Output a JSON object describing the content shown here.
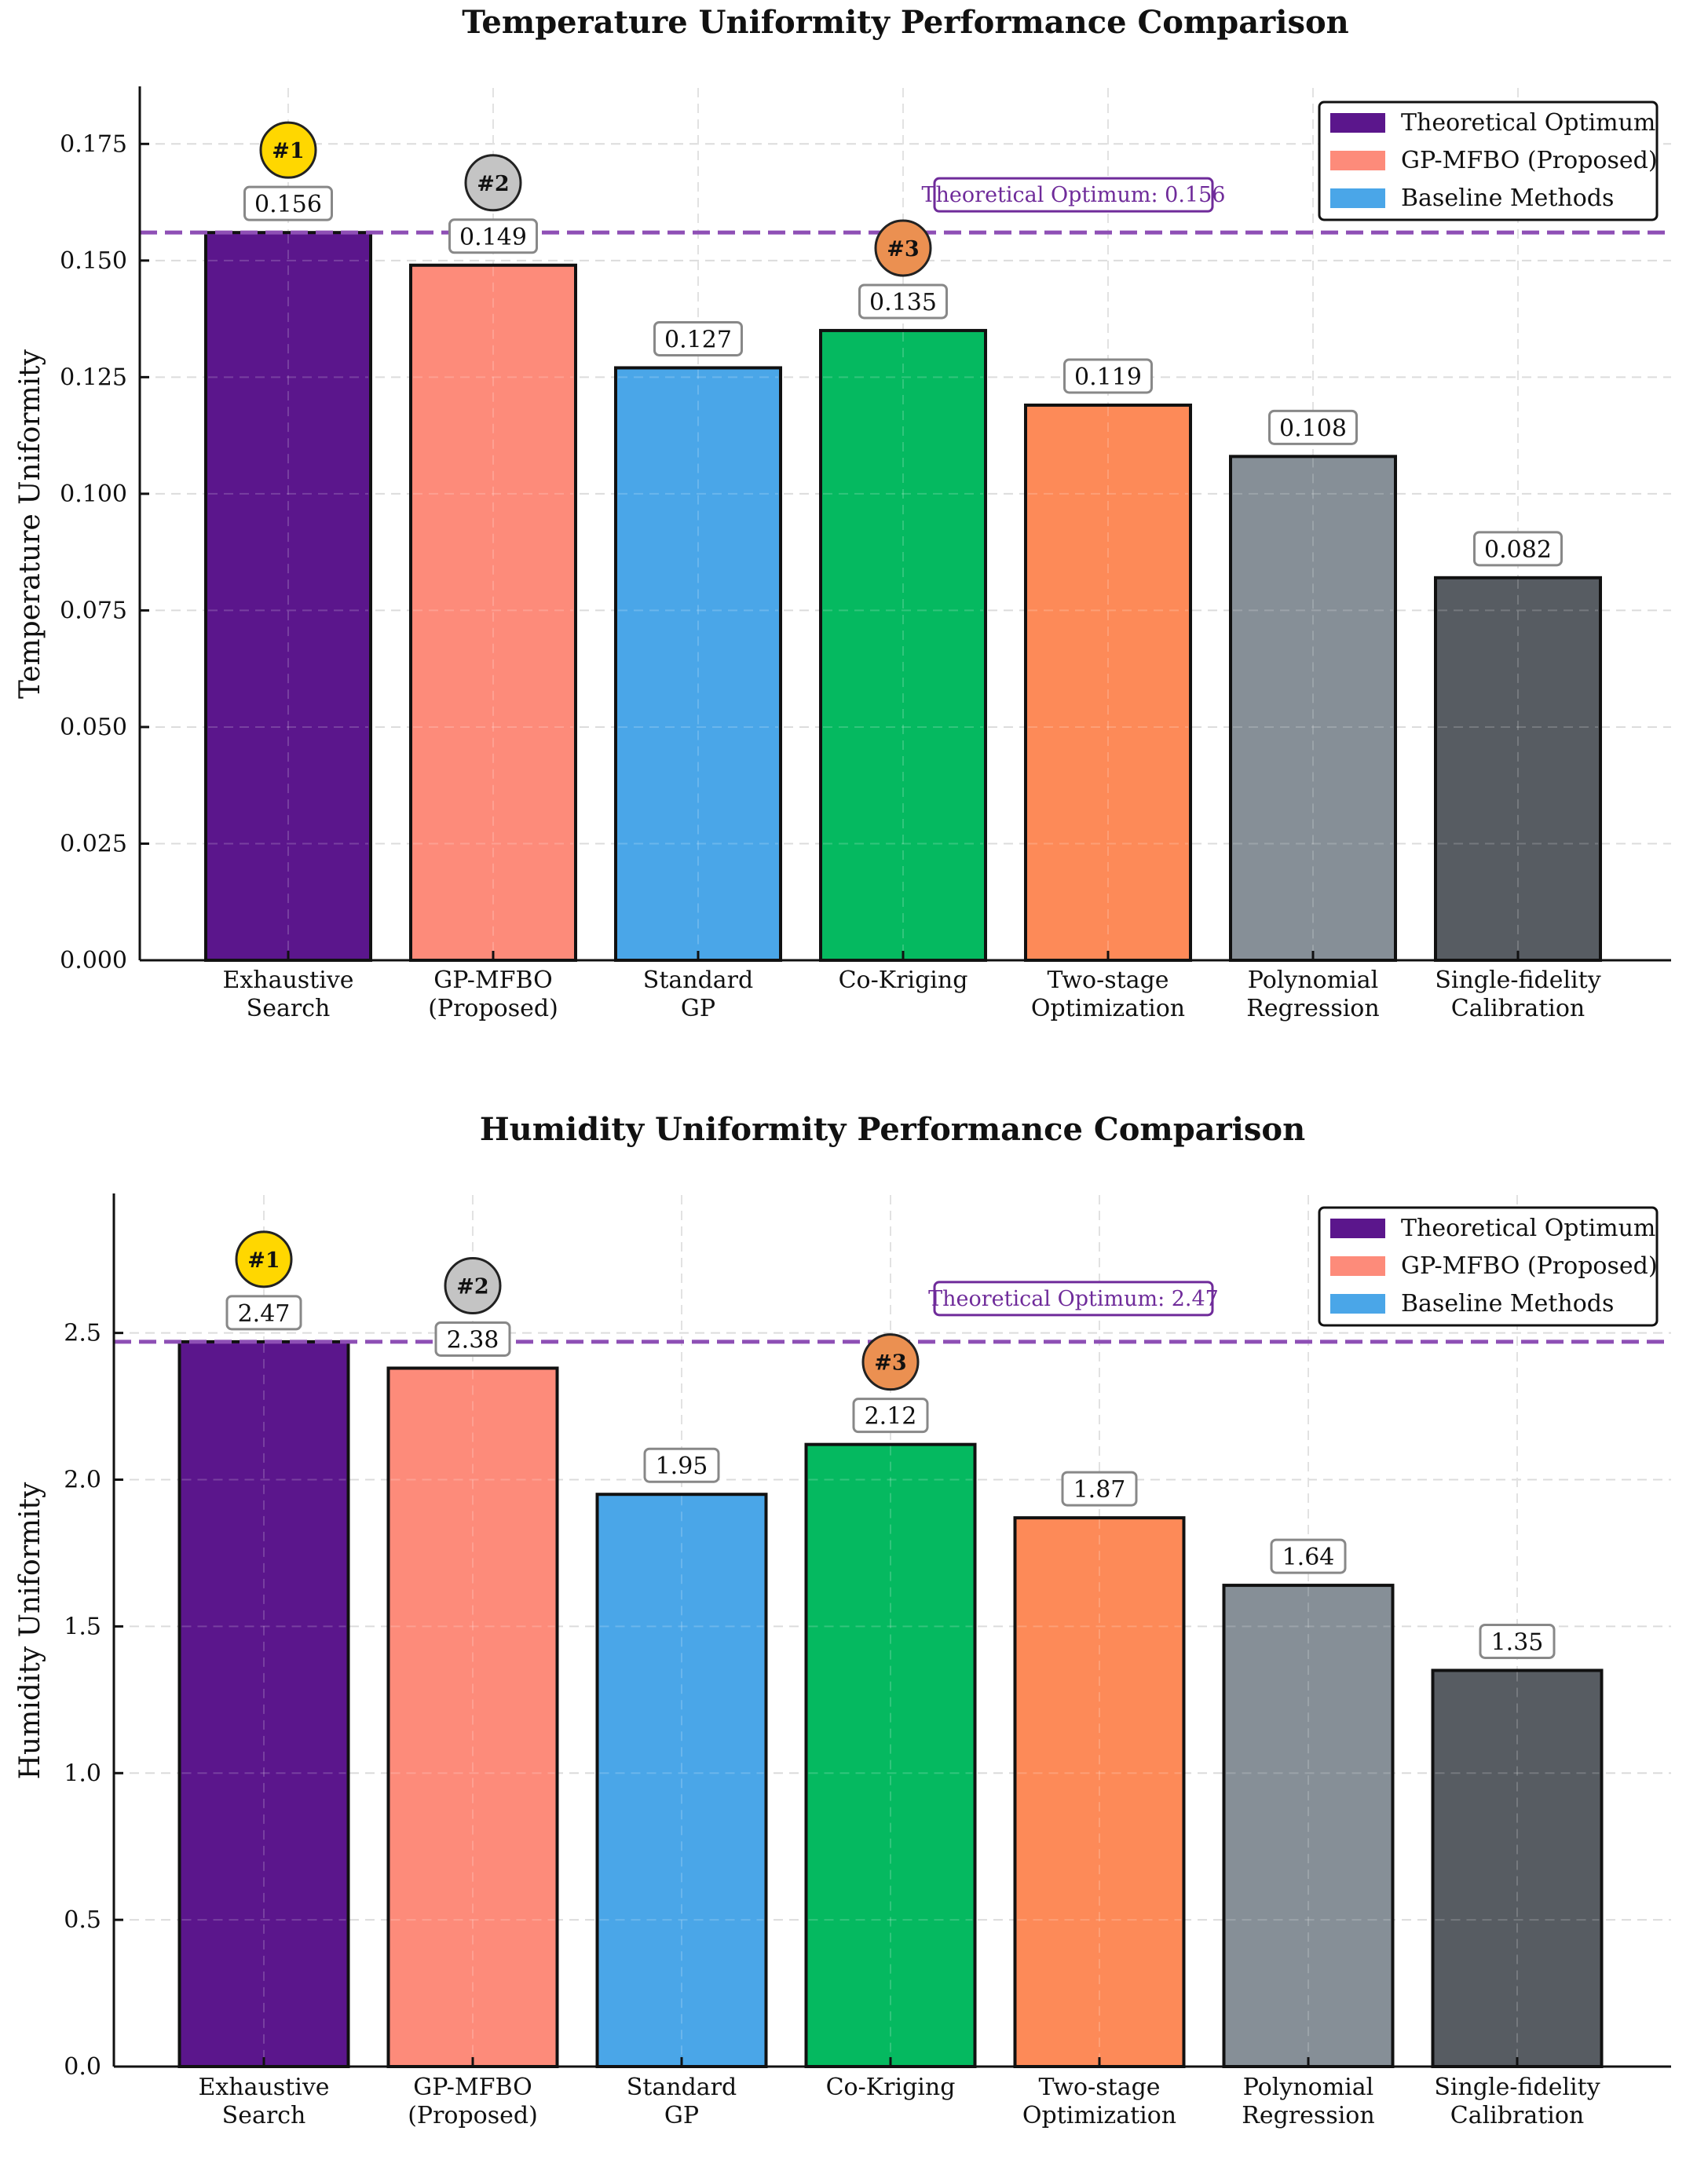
{
  "chart_data": [
    {
      "type": "bar",
      "title": "Temperature Uniformity Performance Comparison",
      "xlabel": "",
      "ylabel": "Temperature Uniformity",
      "ylim": [
        0,
        0.187
      ],
      "yticks": [
        0.0,
        0.025,
        0.05,
        0.075,
        0.1,
        0.125,
        0.15,
        0.175
      ],
      "ytick_labels": [
        "0.000",
        "0.025",
        "0.050",
        "0.075",
        "0.100",
        "0.125",
        "0.150",
        "0.175"
      ],
      "categories": [
        [
          "Exhaustive",
          "Search"
        ],
        [
          "GP-MFBO",
          "(Proposed)"
        ],
        [
          "Standard",
          "GP"
        ],
        [
          "Co-Kriging"
        ],
        [
          "Two-stage",
          "Optimization"
        ],
        [
          "Polynomial",
          "Regression"
        ],
        [
          "Single-fidelity",
          "Calibration"
        ]
      ],
      "values": [
        0.156,
        0.149,
        0.127,
        0.135,
        0.119,
        0.108,
        0.082
      ],
      "value_labels": [
        "0.156",
        "0.149",
        "0.127",
        "0.135",
        "0.119",
        "0.108",
        "0.082"
      ],
      "bar_colors": [
        "#5b168c",
        "#fd8b7a",
        "#4aa6e8",
        "#05b960",
        "#fd8a58",
        "#868f97",
        "#575c62"
      ],
      "ranks": [
        {
          "bar": 0,
          "label": "#1",
          "color": "#ffd700"
        },
        {
          "bar": 1,
          "label": "#2",
          "color": "#c4c4c4"
        },
        {
          "bar": 3,
          "label": "#3",
          "color": "#eb9051"
        }
      ],
      "reference_line": {
        "value": 0.156,
        "label": "Theoretical Optimum: 0.156",
        "color": "#8e4fb5"
      },
      "legend": {
        "position": "top-right",
        "entries": [
          {
            "label": "Theoretical Optimum",
            "color": "#5b168c"
          },
          {
            "label": "GP-MFBO (Proposed)",
            "color": "#fd8b7a"
          },
          {
            "label": "Baseline Methods",
            "color": "#4aa6e8"
          }
        ]
      },
      "grid": true
    },
    {
      "type": "bar",
      "title": "Humidity Uniformity Performance Comparison",
      "xlabel": "",
      "ylabel": "Humidity Uniformity",
      "ylim": [
        0,
        2.97
      ],
      "yticks": [
        0.0,
        0.5,
        1.0,
        1.5,
        2.0,
        2.5
      ],
      "ytick_labels": [
        "0.0",
        "0.5",
        "1.0",
        "1.5",
        "2.0",
        "2.5"
      ],
      "categories": [
        [
          "Exhaustive",
          "Search"
        ],
        [
          "GP-MFBO",
          "(Proposed)"
        ],
        [
          "Standard",
          "GP"
        ],
        [
          "Co-Kriging"
        ],
        [
          "Two-stage",
          "Optimization"
        ],
        [
          "Polynomial",
          "Regression"
        ],
        [
          "Single-fidelity",
          "Calibration"
        ]
      ],
      "values": [
        2.47,
        2.38,
        1.95,
        2.12,
        1.87,
        1.64,
        1.35
      ],
      "value_labels": [
        "2.47",
        "2.38",
        "1.95",
        "2.12",
        "1.87",
        "1.64",
        "1.35"
      ],
      "bar_colors": [
        "#5b168c",
        "#fd8b7a",
        "#4aa6e8",
        "#05b960",
        "#fd8a58",
        "#868f97",
        "#575c62"
      ],
      "ranks": [
        {
          "bar": 0,
          "label": "#1",
          "color": "#ffd700"
        },
        {
          "bar": 1,
          "label": "#2",
          "color": "#c4c4c4"
        },
        {
          "bar": 3,
          "label": "#3",
          "color": "#eb9051"
        }
      ],
      "reference_line": {
        "value": 2.47,
        "label": "Theoretical Optimum: 2.47",
        "color": "#8e4fb5"
      },
      "legend": {
        "position": "top-right",
        "entries": [
          {
            "label": "Theoretical Optimum",
            "color": "#5b168c"
          },
          {
            "label": "GP-MFBO (Proposed)",
            "color": "#fd8b7a"
          },
          {
            "label": "Baseline Methods",
            "color": "#4aa6e8"
          }
        ]
      },
      "grid": true
    }
  ]
}
